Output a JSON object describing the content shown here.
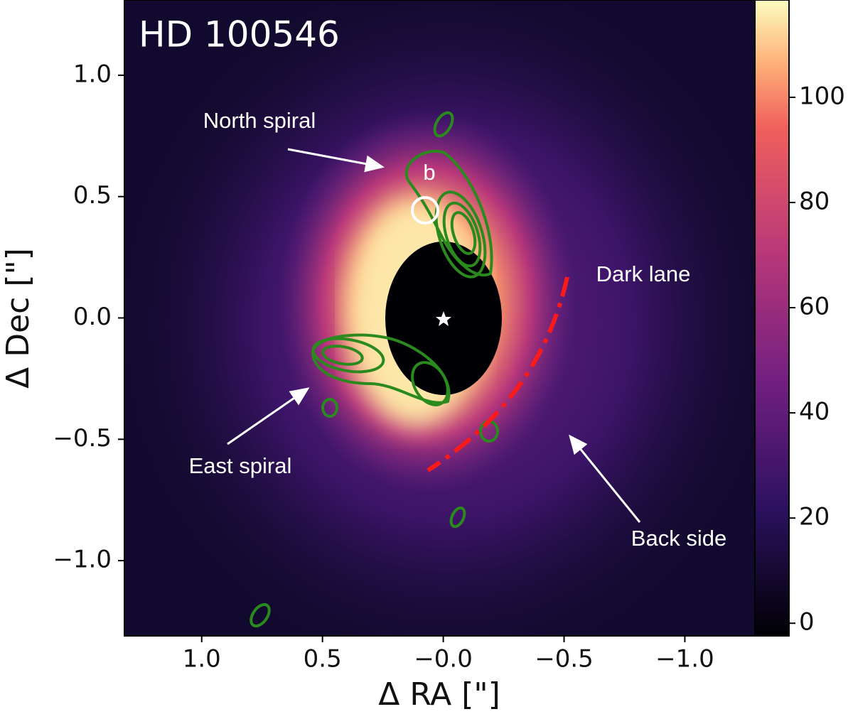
{
  "chart_data": {
    "type": "image",
    "title": "HD 100546",
    "xlabel": "Δ RA [\"]",
    "ylabel": "Δ Dec [\"]",
    "xlim": [
      1.32,
      -1.29
    ],
    "ylim": [
      -1.31,
      1.31
    ],
    "xticks": [
      {
        "value": 1,
        "label": "1.0"
      },
      0.5,
      {
        "value": 0,
        "label": "−0.0"
      },
      {
        "value": -0.5,
        "label": "−0.5"
      },
      {
        "value": -1,
        "label": "−1.0"
      }
    ],
    "yticks": [
      {
        "value": 1,
        "label": "1.0"
      },
      0.5,
      {
        "value": 0,
        "label": "0.0"
      },
      {
        "value": -0.5,
        "label": "−0.5"
      },
      {
        "value": -1,
        "label": "−1.0"
      }
    ],
    "colorbar": {
      "clim": [
        -2.4,
        118.5
      ],
      "ticks": [
        0,
        20,
        40,
        60,
        80,
        100
      ]
    },
    "annotations": [
      "North spiral",
      "b",
      "East spiral",
      "Dark lane",
      "Back side"
    ]
  }
}
